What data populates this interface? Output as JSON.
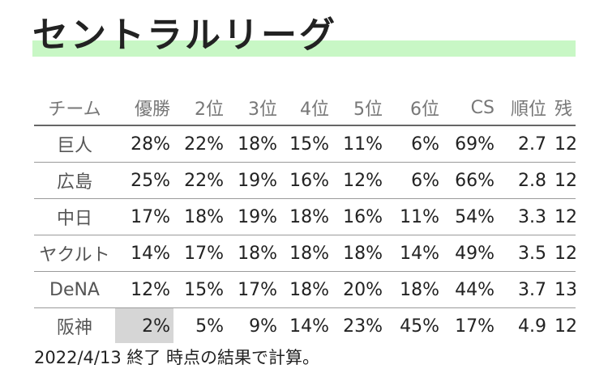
{
  "title": "セントラルリーグ",
  "table": {
    "headers": [
      "チーム",
      "優勝",
      "2位",
      "3位",
      "4位",
      "5位",
      "6位",
      "CS",
      "順位",
      "残"
    ],
    "rows": [
      {
        "team": "巨人",
        "cells": [
          "28%",
          "22%",
          "18%",
          "15%",
          "11%",
          "6%",
          "69%",
          "2.7",
          "12"
        ]
      },
      {
        "team": "広島",
        "cells": [
          "25%",
          "22%",
          "19%",
          "16%",
          "12%",
          "6%",
          "66%",
          "2.8",
          "12"
        ]
      },
      {
        "team": "中日",
        "cells": [
          "17%",
          "18%",
          "19%",
          "18%",
          "16%",
          "11%",
          "54%",
          "3.3",
          "12"
        ]
      },
      {
        "team": "ヤクルト",
        "cells": [
          "14%",
          "17%",
          "18%",
          "18%",
          "18%",
          "14%",
          "49%",
          "3.5",
          "12"
        ]
      },
      {
        "team": "DeNA",
        "cells": [
          "12%",
          "15%",
          "17%",
          "18%",
          "20%",
          "18%",
          "44%",
          "3.7",
          "13"
        ]
      },
      {
        "team": "阪神",
        "cells": [
          "2%",
          "5%",
          "9%",
          "14%",
          "23%",
          "45%",
          "17%",
          "4.9",
          "12"
        ]
      }
    ]
  },
  "footnote": "2022/4/13 終了 時点の結果で計算。",
  "colors": {
    "title_highlight": "#c8f7c5",
    "shaded_cell": "#d6d6d6"
  }
}
